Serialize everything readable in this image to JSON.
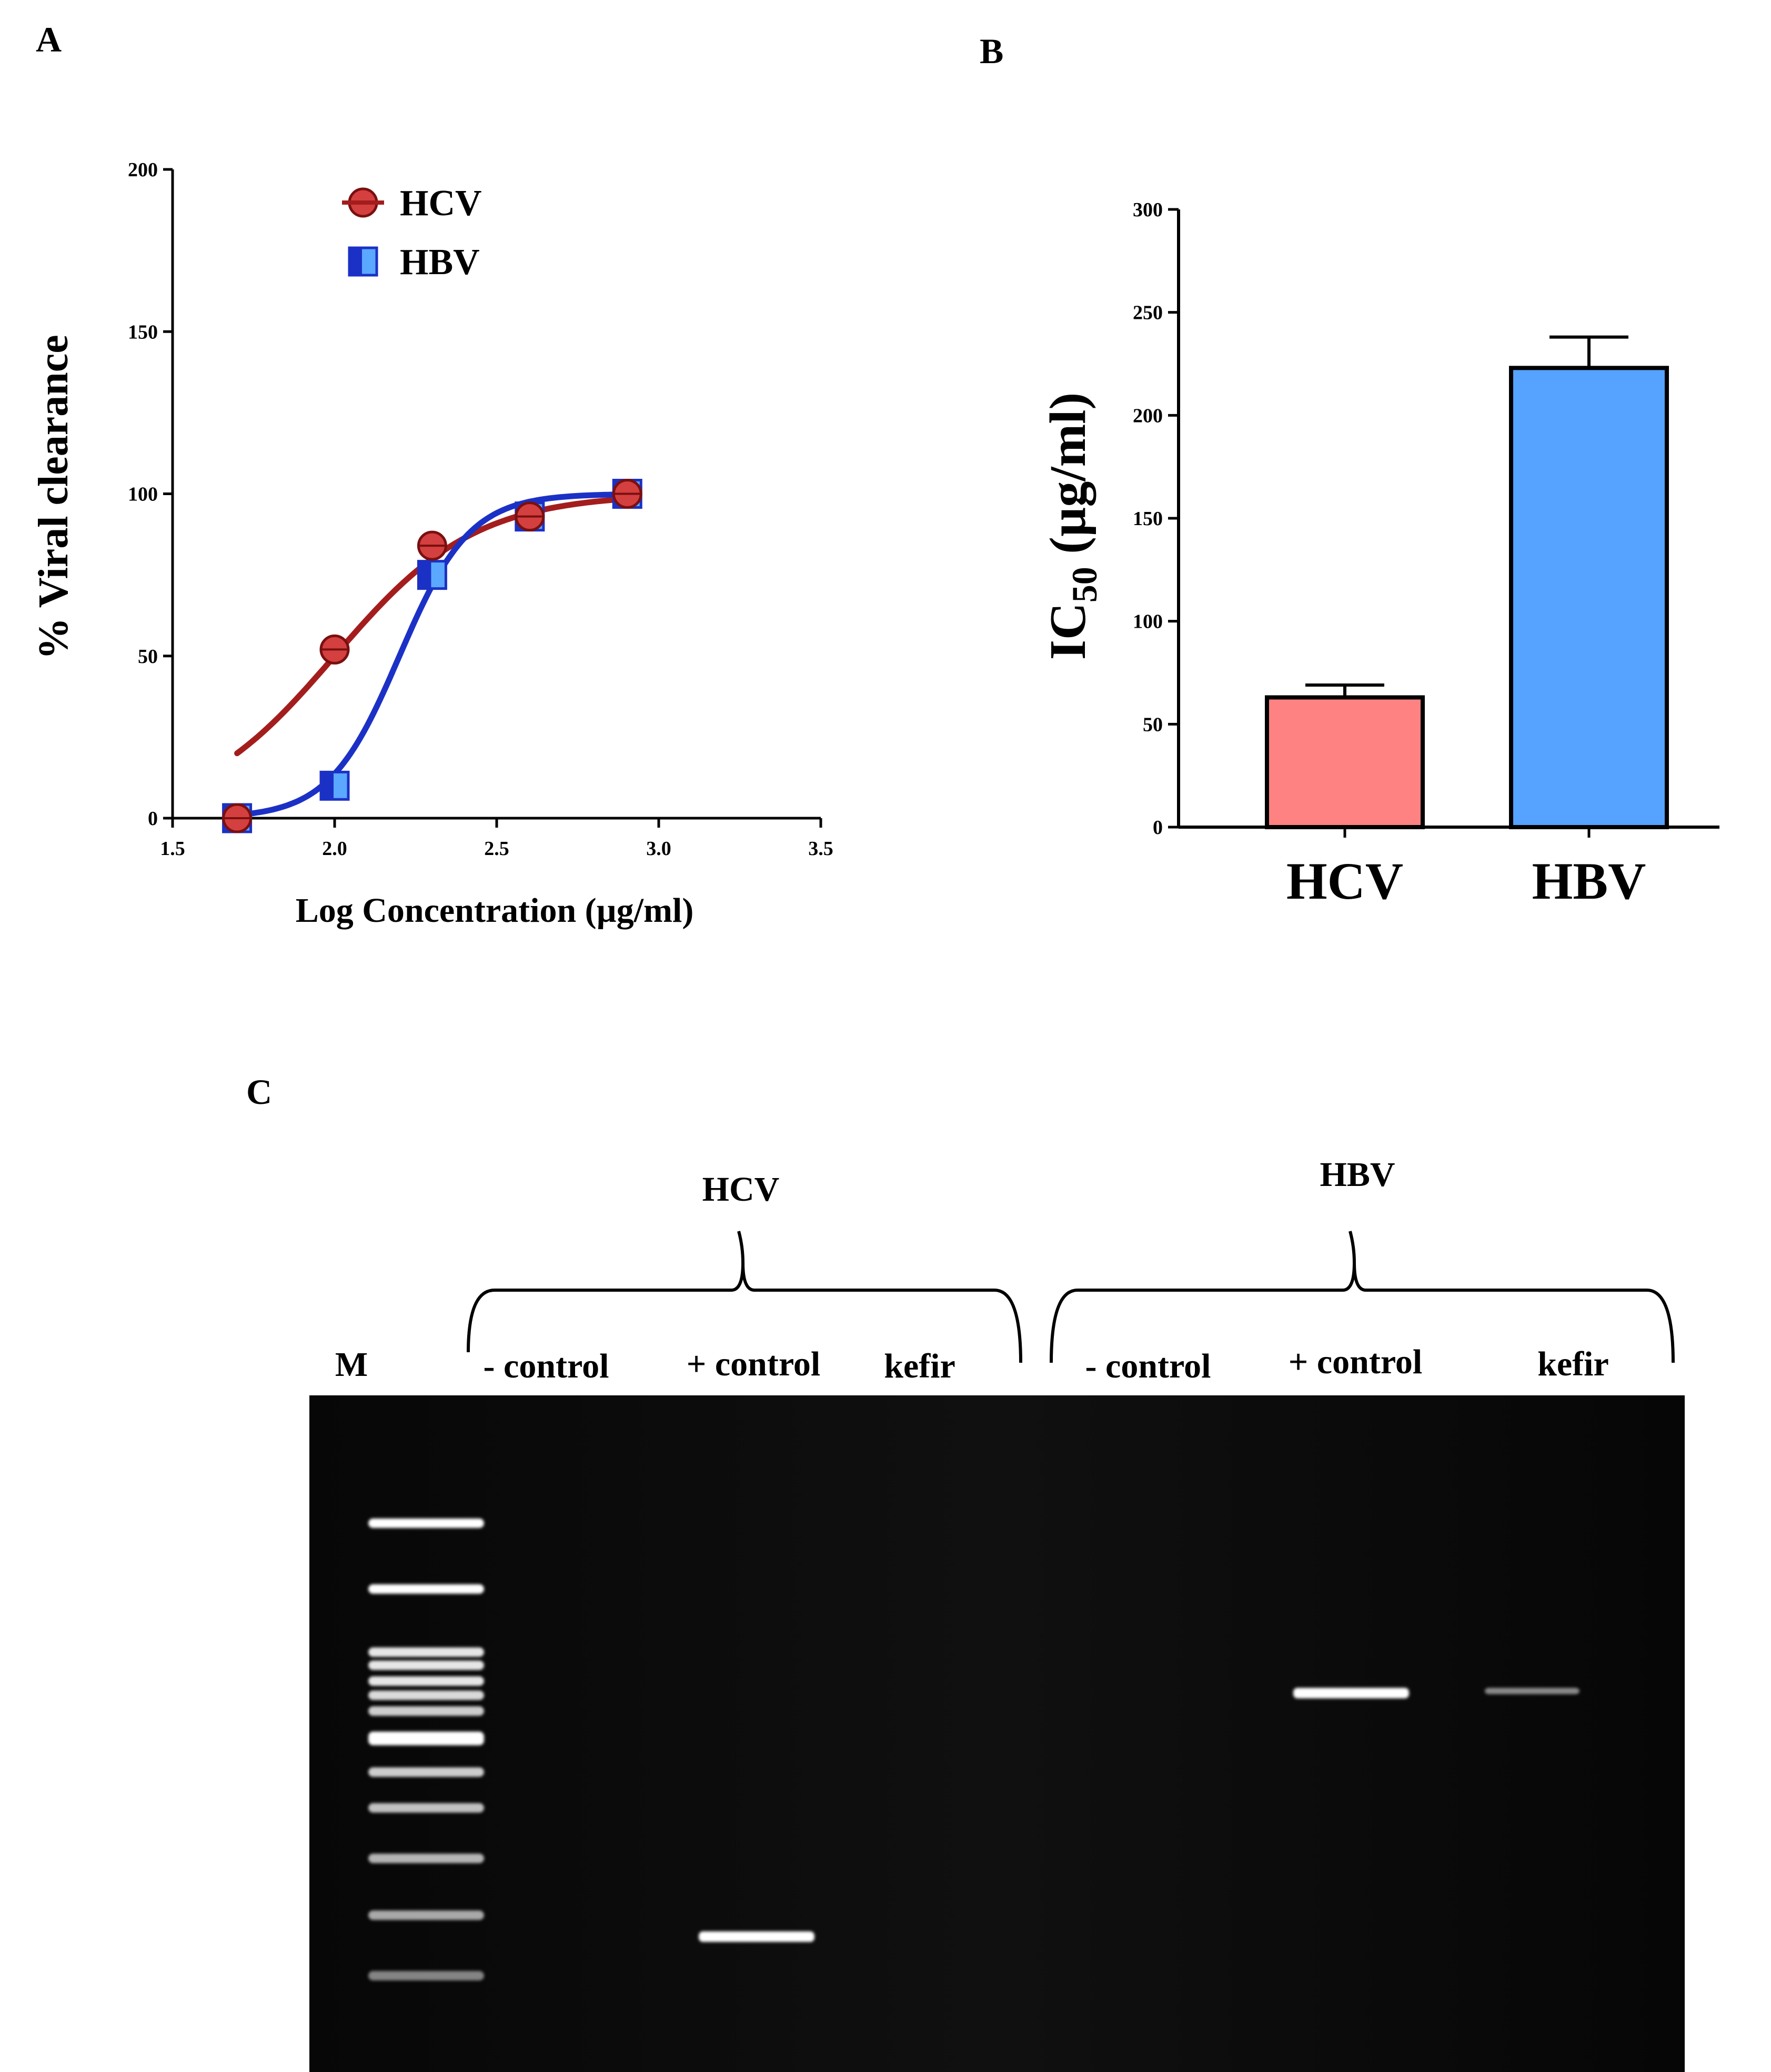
{
  "figure": {
    "panel_labels": [
      "A",
      "B",
      "C"
    ]
  },
  "chart_data": [
    {
      "type": "scatter",
      "panel": "A",
      "xlabel": "Log Concentration (µg/ml)",
      "ylabel": "% Viral clearance",
      "xlim": [
        1.5,
        3.5
      ],
      "ylim": [
        0,
        200
      ],
      "xticks": [
        "1.5",
        "2.0",
        "2.5",
        "3.0",
        "3.5"
      ],
      "yticks": [
        "0",
        "50",
        "100",
        "150",
        "200"
      ],
      "legend_position": "top-left",
      "series": [
        {
          "name": "HCV",
          "color": "#a41d1d",
          "marker": "circle",
          "x": [
            1.699,
            2.0,
            2.301,
            2.602,
            2.903
          ],
          "y": [
            0,
            52,
            84,
            93,
            100
          ],
          "fit": {
            "type": "sigmoid",
            "bottom": 0,
            "top": 100,
            "log_ec50": 2.0,
            "hill": 2.0,
            "x_range": [
              1.699,
              2.903
            ]
          }
        },
        {
          "name": "HBV",
          "color": "#1b31c6",
          "marker": "square",
          "x": [
            1.699,
            2.0,
            2.301,
            2.602,
            2.903
          ],
          "y": [
            0,
            10,
            75,
            93,
            100
          ],
          "fit": {
            "type": "sigmoid",
            "bottom": 0,
            "top": 100,
            "log_ec50": 2.2,
            "hill": 4.0,
            "x_range": [
              1.699,
              2.903
            ]
          }
        }
      ]
    },
    {
      "type": "bar",
      "panel": "B",
      "ylabel_main": "IC",
      "ylabel_sub": "50",
      "ylabel_unit": " (µg/ml)",
      "ylim": [
        0,
        300
      ],
      "yticks": [
        "0",
        "50",
        "100",
        "150",
        "200",
        "250",
        "300"
      ],
      "categories": [
        "HCV",
        "HBV"
      ],
      "values": [
        63,
        223
      ],
      "errors": [
        6,
        15
      ],
      "colors": [
        "#ff8282",
        "#55a2ff"
      ]
    },
    {
      "type": "gel",
      "panel": "C",
      "groups": [
        {
          "name": "HCV",
          "lanes": [
            "- control",
            "+ control",
            "kefir"
          ]
        },
        {
          "name": "HBV",
          "lanes": [
            "- control",
            "+ control",
            "kefir"
          ]
        }
      ],
      "marker_label": "M",
      "ladder_band_count": 13,
      "bands": [
        {
          "lane": "HCV + control",
          "migration": 0.8,
          "intensity": "strong"
        },
        {
          "lane": "HBV + control",
          "migration": 0.44,
          "intensity": "strong"
        },
        {
          "lane": "HBV kefir",
          "migration": 0.44,
          "intensity": "weak"
        }
      ]
    }
  ]
}
